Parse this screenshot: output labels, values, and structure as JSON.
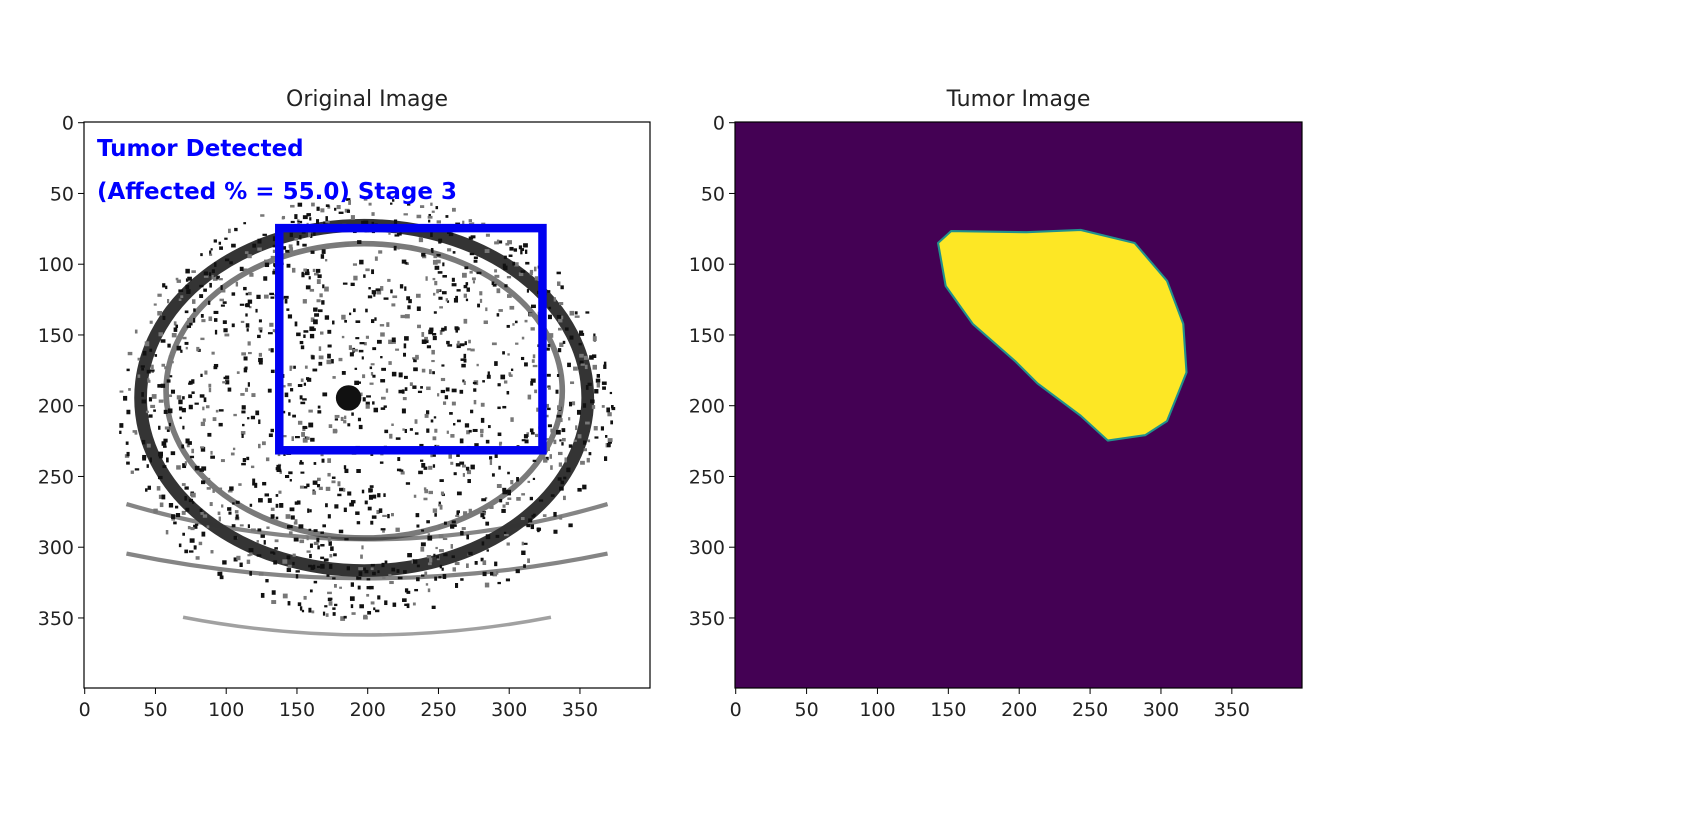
{
  "panels": [
    {
      "title": "Original Image",
      "xlim": [
        -0.5,
        399.5
      ],
      "ylim": [
        399.5,
        -0.5
      ],
      "xticks": [
        0,
        50,
        100,
        150,
        200,
        250,
        300,
        350
      ],
      "yticks": [
        0,
        50,
        100,
        150,
        200,
        250,
        300,
        350
      ],
      "overlay": [
        "Tumor Detected",
        "(Affected % = 55.0) Stage 3"
      ]
    },
    {
      "title": "Tumor Image",
      "xlim": [
        -0.5,
        399.5
      ],
      "ylim": [
        399.5,
        -0.5
      ],
      "xticks": [
        0,
        50,
        100,
        150,
        200,
        250,
        300,
        350
      ],
      "yticks": [
        0,
        50,
        100,
        150,
        200,
        250,
        300,
        350
      ]
    }
  ]
}
